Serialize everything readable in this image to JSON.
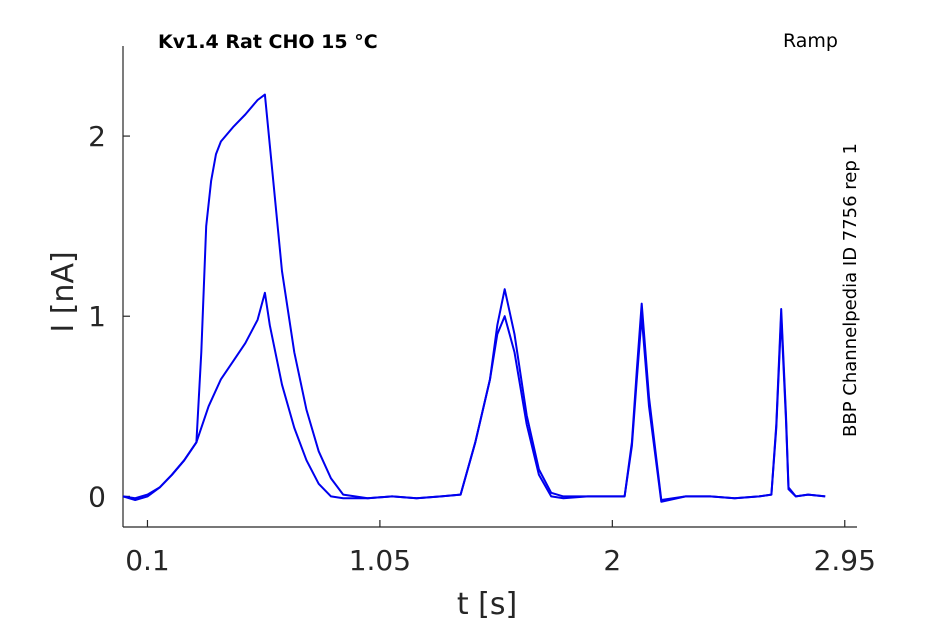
{
  "chart_data": {
    "type": "line",
    "title": "Kv1.4  Rat  CHO  15 °C",
    "protocol_label": "Ramp",
    "side_label": "BBP Channelpedia ID 7756 rep 1",
    "xlabel": "t [s]",
    "ylabel": "I [nA]",
    "xlim": [
      0.0,
      3.0
    ],
    "ylim": [
      -0.17,
      2.5
    ],
    "x_ticks": [
      0.1,
      1.05,
      2,
      2.95
    ],
    "x_tick_labels": [
      "0.1",
      "1.05",
      "2",
      "2.95"
    ],
    "y_ticks": [
      0,
      1,
      2
    ],
    "y_tick_labels": [
      "0",
      "1",
      "2"
    ],
    "grid": false,
    "line_color": "#0000ee",
    "series": [
      {
        "x": [
          0.0,
          0.05,
          0.1,
          0.15,
          0.2,
          0.25,
          0.3,
          0.32,
          0.34,
          0.36,
          0.38,
          0.4,
          0.45,
          0.5,
          0.55,
          0.58,
          0.6,
          0.65,
          0.7,
          0.75,
          0.8,
          0.85,
          0.9,
          1.0,
          1.1,
          1.2,
          1.3,
          1.38,
          1.44,
          1.5,
          1.53,
          1.56,
          1.6,
          1.65,
          1.7,
          1.75,
          1.8,
          1.9,
          2.0,
          2.05,
          2.08,
          2.1,
          2.12,
          2.15,
          2.2,
          2.3,
          2.4,
          2.5,
          2.6,
          2.65,
          2.67,
          2.69,
          2.71,
          2.72,
          2.75,
          2.8,
          2.87
        ],
        "y": [
          0.0,
          -0.01,
          0.01,
          0.05,
          0.12,
          0.2,
          0.3,
          0.8,
          1.5,
          1.75,
          1.9,
          1.97,
          2.05,
          2.12,
          2.2,
          2.23,
          1.95,
          1.25,
          0.8,
          0.48,
          0.25,
          0.1,
          0.01,
          -0.01,
          0.0,
          -0.01,
          0.0,
          0.01,
          0.3,
          0.65,
          0.95,
          1.15,
          0.9,
          0.45,
          0.15,
          0.02,
          0.0,
          0.0,
          0.0,
          0.0,
          0.3,
          0.7,
          1.07,
          0.55,
          -0.02,
          0.0,
          0.0,
          -0.01,
          0.0,
          0.01,
          0.4,
          1.04,
          0.45,
          0.05,
          0.0,
          0.01,
          0.0
        ]
      },
      {
        "x": [
          0.0,
          0.05,
          0.1,
          0.15,
          0.2,
          0.25,
          0.3,
          0.35,
          0.4,
          0.45,
          0.5,
          0.55,
          0.58,
          0.6,
          0.65,
          0.7,
          0.75,
          0.8,
          0.85,
          0.9,
          1.0,
          1.1,
          1.2,
          1.3,
          1.38,
          1.44,
          1.5,
          1.53,
          1.56,
          1.6,
          1.65,
          1.7,
          1.75,
          1.8,
          1.9,
          2.0,
          2.05,
          2.08,
          2.1,
          2.12,
          2.15,
          2.2,
          2.3,
          2.4,
          2.5,
          2.6,
          2.65,
          2.67,
          2.69,
          2.71,
          2.72,
          2.75,
          2.8,
          2.87
        ],
        "y": [
          0.0,
          -0.02,
          0.0,
          0.05,
          0.12,
          0.2,
          0.3,
          0.5,
          0.65,
          0.75,
          0.85,
          0.98,
          1.13,
          0.95,
          0.62,
          0.38,
          0.2,
          0.07,
          0.0,
          -0.01,
          -0.01,
          0.0,
          -0.01,
          0.0,
          0.01,
          0.3,
          0.65,
          0.9,
          1.0,
          0.8,
          0.4,
          0.12,
          0.0,
          -0.01,
          0.0,
          0.0,
          0.0,
          0.28,
          0.65,
          1.0,
          0.5,
          -0.03,
          0.0,
          0.0,
          -0.01,
          0.0,
          0.01,
          0.38,
          1.0,
          0.42,
          0.04,
          0.0,
          0.01,
          0.0
        ]
      }
    ]
  }
}
